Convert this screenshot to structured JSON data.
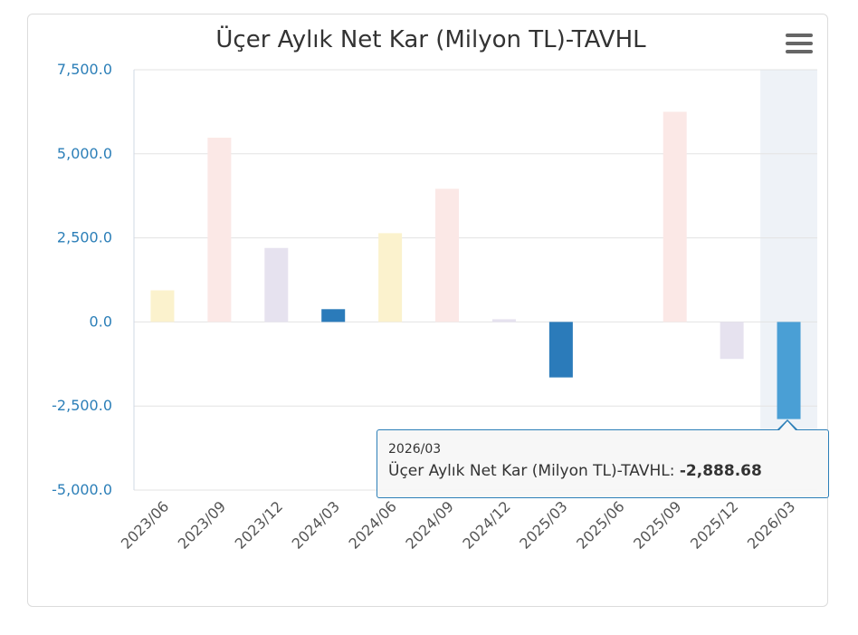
{
  "chart_data": {
    "type": "bar",
    "title": "Üçer Aylık Net Kar (Milyon TL)-TAVHL",
    "categories": [
      "2023/06",
      "2023/09",
      "2023/12",
      "2024/03",
      "2024/06",
      "2024/09",
      "2024/12",
      "2025/03",
      "2025/06",
      "2025/09",
      "2025/12",
      "2026/03"
    ],
    "series": [
      {
        "name": "Üçer Aylık Net Kar (Milyon TL)-TAVHL",
        "values": [
          940,
          5480,
          2200,
          380,
          2640,
          3960,
          80,
          -1650,
          0,
          6250,
          -1100,
          -2888.68
        ]
      }
    ],
    "colors": [
      "#fbf2cd",
      "#fbe8e6",
      "#e6e2ef",
      "#2b7bba",
      "#fbf2cd",
      "#fbe8e6",
      "#e6e2ef",
      "#2b7bba",
      "#fbf2cd",
      "#fbe8e6",
      "#e6e2ef",
      "#4a9fd5"
    ],
    "highlight_category": "2026/03",
    "highlight_band_color": "#eef2f7",
    "ylim": [
      -5000,
      7500
    ],
    "yticks": [
      "7,500.0",
      "5,000.0",
      "2,500.0",
      "0.0",
      "-2,500.0",
      "-5,000.0"
    ],
    "ytick_values": [
      7500,
      5000,
      2500,
      0,
      -2500,
      -5000
    ],
    "ytick_color": "#2c7fb8",
    "grid": true,
    "xlabel": "",
    "ylabel": ""
  },
  "tooltip": {
    "category": "2026/03",
    "series_label": "Üçer Aylık Net Kar (Milyon TL)-TAVHL: ",
    "value": "-2,888.68"
  },
  "menu_icon": "hamburger-menu-icon"
}
